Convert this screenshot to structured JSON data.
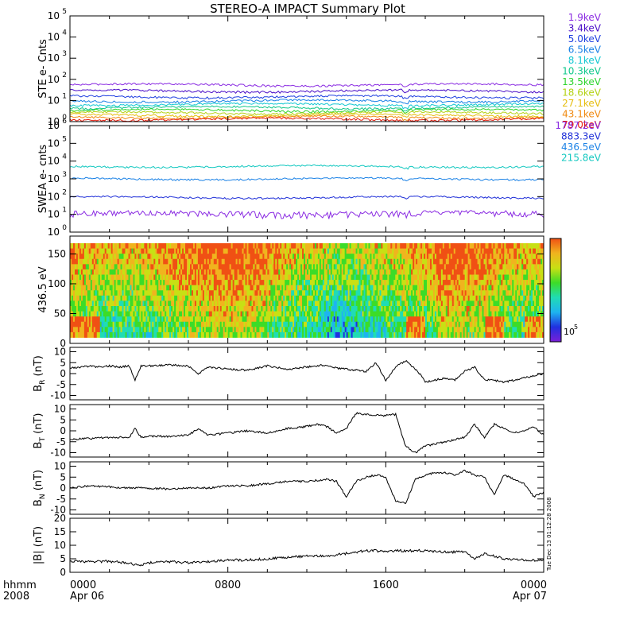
{
  "title": "STEREO-A IMPACT Summary Plot",
  "x_axis": {
    "row1_label": "hhmm",
    "row2_label": "2008",
    "ticks": [
      {
        "t": 0,
        "top": "0000",
        "bottom": "Apr 06"
      },
      {
        "t": 8,
        "top": "0800",
        "bottom": ""
      },
      {
        "t": 16,
        "top": "1600",
        "bottom": ""
      },
      {
        "t": 24,
        "top": "0000",
        "bottom": "Apr 07"
      }
    ],
    "range_hours": [
      0,
      24
    ]
  },
  "timestamp": "Tue Dec 13 01:12:28 2008",
  "chart_data": [
    {
      "type": "line",
      "ylabel": "STE e- Cnts",
      "yscale": "log",
      "ylim": [
        1,
        100000
      ],
      "yticks": [
        {
          "v": 1,
          "b": "10",
          "e": "0"
        },
        {
          "v": 10,
          "b": "10",
          "e": "1"
        },
        {
          "v": 100,
          "b": "10",
          "e": "2"
        },
        {
          "v": 1000,
          "b": "10",
          "e": "3"
        },
        {
          "v": 10000,
          "b": "10",
          "e": "4"
        },
        {
          "v": 100000,
          "b": "10",
          "e": "5"
        }
      ],
      "series": [
        {
          "name": "1.9keV",
          "color": "#8a2be2",
          "level": 55
        },
        {
          "name": "3.4keV",
          "color": "#4b0fc8",
          "level": 28
        },
        {
          "name": "5.0keV",
          "color": "#1f3fe0",
          "level": 15
        },
        {
          "name": "6.5keV",
          "color": "#1b82e6",
          "level": 9.5
        },
        {
          "name": "8.1keV",
          "color": "#14c8d2",
          "level": 6.5
        },
        {
          "name": "10.3keV",
          "color": "#10c88c",
          "level": 4.6
        },
        {
          "name": "13.5keV",
          "color": "#2ed42e",
          "level": 3.4
        },
        {
          "name": "18.6keV",
          "color": "#b4d214",
          "level": 2.6
        },
        {
          "name": "27.1keV",
          "color": "#e6be10",
          "level": 2.0
        },
        {
          "name": "43.1keV",
          "color": "#f08a10",
          "level": 1.6
        },
        {
          "name": "79.0keV",
          "color": "#e61e10",
          "level": 1.3
        }
      ]
    },
    {
      "type": "line",
      "ylabel": "SWEA e- cnts",
      "yscale": "log",
      "ylim": [
        1,
        1000000
      ],
      "yticks": [
        {
          "v": 1,
          "b": "10",
          "e": "0"
        },
        {
          "v": 10,
          "b": "10",
          "e": "1"
        },
        {
          "v": 100,
          "b": "10",
          "e": "2"
        },
        {
          "v": 1000,
          "b": "10",
          "e": "3"
        },
        {
          "v": 10000,
          "b": "10",
          "e": "4"
        },
        {
          "v": 100000,
          "b": "10",
          "e": "5"
        },
        {
          "v": 1000000,
          "b": "10",
          "e": "6"
        }
      ],
      "series": [
        {
          "name": "1787.2eV",
          "color": "#8a2be2",
          "level": 11
        },
        {
          "name": "883.3eV",
          "color": "#1f2fd8",
          "level": 90
        },
        {
          "name": "436.5eV",
          "color": "#1b82e6",
          "level": 1000
        },
        {
          "name": "215.8eV",
          "color": "#14c8c0",
          "level": 5000
        }
      ]
    },
    {
      "type": "heatmap",
      "ylabel": "436.5 eV",
      "ylim": [
        0,
        180
      ],
      "yticks": [
        {
          "v": 0,
          "t": "0"
        },
        {
          "v": 50,
          "t": "50"
        },
        {
          "v": 100,
          "t": "100"
        },
        {
          "v": 150,
          "t": "150"
        }
      ],
      "colorbar_label": "10",
      "colorbar_exp": "5",
      "colormap": [
        "#7a1fd8",
        "#2030e0",
        "#1eb4f0",
        "#20dcb4",
        "#3cdc28",
        "#c8e014",
        "#f0b41e",
        "#f05014"
      ]
    },
    {
      "type": "line",
      "ylabel_main": "B",
      "ylabel_sub": "R",
      "ylabel_unit": " (nT)",
      "ylim": [
        -12,
        12
      ],
      "yticks": [
        {
          "v": -10,
          "t": "-10"
        },
        {
          "v": -5,
          "t": "-5"
        },
        {
          "v": 0,
          "t": "0"
        },
        {
          "v": 5,
          "t": "5"
        },
        {
          "v": 10,
          "t": "10"
        }
      ],
      "x": [
        0,
        0.5,
        1,
        1.5,
        2,
        2.5,
        3,
        3.3,
        3.6,
        4,
        5,
        6,
        6.5,
        7,
        8,
        9,
        10,
        11,
        12,
        13,
        13.5,
        14,
        15,
        15.5,
        16,
        16.5,
        17,
        17.5,
        17.8,
        18,
        18.5,
        19,
        19.5,
        20,
        20.5,
        21,
        21.5,
        22,
        22.5,
        23,
        23.5,
        24
      ],
      "values": [
        2.5,
        3,
        3.5,
        3,
        3.5,
        3,
        3.5,
        -3,
        3.5,
        3.5,
        4,
        3.5,
        0,
        3,
        2,
        1.5,
        3.5,
        2,
        3,
        4,
        2.5,
        2,
        1,
        5,
        -3,
        3,
        6,
        2,
        -1,
        -4,
        -3,
        -2,
        -3,
        1,
        3,
        -3,
        -3,
        -4,
        -3,
        -2,
        -1,
        0
      ]
    },
    {
      "type": "line",
      "ylabel_main": "B",
      "ylabel_sub": "T",
      "ylabel_unit": " (nT)",
      "ylim": [
        -12,
        12
      ],
      "yticks": [
        {
          "v": -10,
          "t": "-10"
        },
        {
          "v": -5,
          "t": "-5"
        },
        {
          "v": 0,
          "t": "0"
        },
        {
          "v": 5,
          "t": "5"
        },
        {
          "v": 10,
          "t": "10"
        }
      ],
      "x": [
        0,
        1,
        2,
        3,
        3.3,
        3.6,
        4,
        5,
        6,
        6.5,
        7,
        8,
        9,
        10,
        11,
        12,
        12.5,
        13,
        13.5,
        14,
        14.5,
        15,
        16,
        16.5,
        17,
        17.5,
        18,
        18.5,
        19,
        19.5,
        20,
        20.5,
        21,
        21.5,
        22,
        22.5,
        23,
        23.5,
        24
      ],
      "values": [
        -4,
        -3.5,
        -3,
        -3,
        1,
        -3,
        -2.5,
        -2.5,
        -2,
        1,
        -2,
        -1,
        0,
        -1,
        1,
        2,
        3,
        2,
        -1,
        1,
        8,
        7.5,
        7,
        7.5,
        -7,
        -10,
        -7,
        -6,
        -5,
        -4,
        -3,
        3,
        -3,
        3,
        1,
        -1,
        0,
        2,
        -2
      ]
    },
    {
      "type": "line",
      "ylabel_main": "B",
      "ylabel_sub": "N",
      "ylabel_unit": " (nT)",
      "ylim": [
        -12,
        12
      ],
      "yticks": [
        {
          "v": -10,
          "t": "-10"
        },
        {
          "v": -5,
          "t": "-5"
        },
        {
          "v": 0,
          "t": "0"
        },
        {
          "v": 5,
          "t": "5"
        },
        {
          "v": 10,
          "t": "10"
        }
      ],
      "x": [
        0,
        1,
        2,
        3,
        4,
        5,
        6,
        7,
        8,
        9,
        10,
        11,
        12,
        13,
        13.5,
        14,
        14.5,
        15,
        15.5,
        16,
        16.5,
        17,
        17.5,
        18,
        18.5,
        19,
        19.5,
        20,
        20.5,
        21,
        21.5,
        22,
        22.5,
        23,
        23.5,
        24
      ],
      "values": [
        0,
        1,
        0.5,
        0,
        0,
        -0.5,
        0,
        0,
        1,
        1,
        2,
        3,
        3,
        4,
        3,
        -4,
        3,
        5,
        6,
        5,
        -6,
        -7,
        4,
        6,
        7,
        7,
        6,
        8,
        6,
        5,
        -3,
        6,
        4,
        2,
        -4,
        -2
      ]
    },
    {
      "type": "line",
      "ylabel_main": "|B|",
      "ylabel_sub": "",
      "ylabel_unit": " (nT)",
      "ylim": [
        0,
        20
      ],
      "yticks": [
        {
          "v": 0,
          "t": "0"
        },
        {
          "v": 5,
          "t": "5"
        },
        {
          "v": 10,
          "t": "10"
        },
        {
          "v": 15,
          "t": "15"
        },
        {
          "v": 20,
          "t": "20"
        }
      ],
      "x": [
        0,
        1,
        2,
        3,
        3.5,
        4,
        5,
        6,
        7,
        8,
        9,
        10,
        11,
        12,
        13,
        14,
        15,
        15.5,
        16,
        16.5,
        17,
        18,
        19,
        20,
        20.5,
        21,
        21.5,
        22,
        23,
        24
      ],
      "values": [
        4,
        4,
        4,
        3.5,
        2.5,
        3.5,
        4,
        3.5,
        4,
        4.5,
        4.5,
        5,
        5.5,
        6,
        6,
        7,
        8,
        8,
        7.5,
        8,
        8,
        8,
        7.5,
        7.5,
        5,
        7,
        6,
        5,
        4.5,
        4.5
      ]
    }
  ]
}
